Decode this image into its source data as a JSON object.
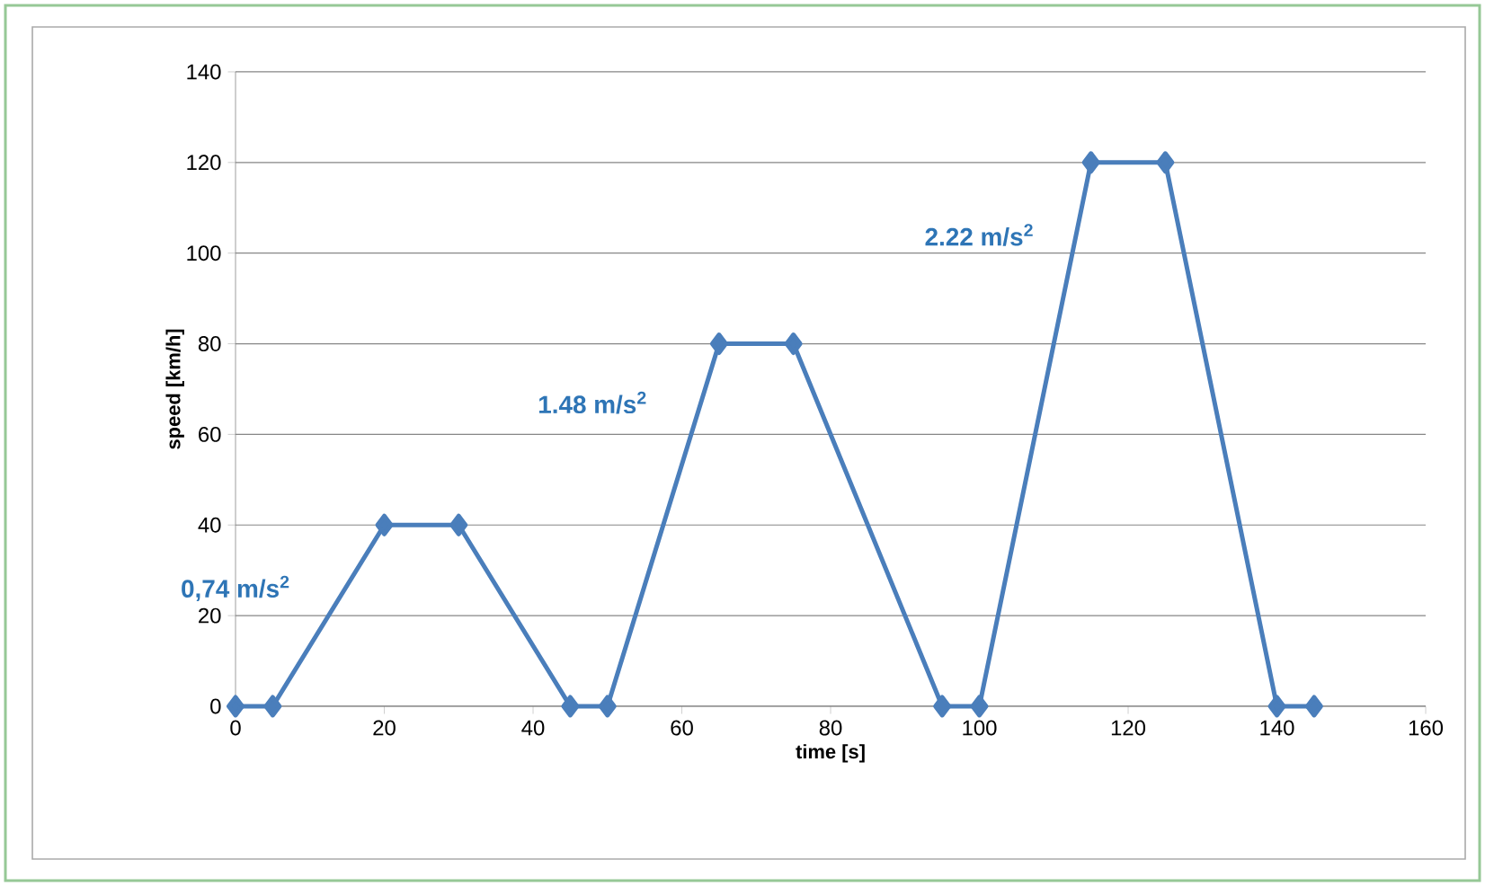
{
  "chart_data": {
    "type": "line",
    "xlabel": "time [s]",
    "ylabel": "speed [km/h]",
    "x": [
      0,
      5,
      20,
      30,
      45,
      50,
      65,
      75,
      95,
      100,
      115,
      125,
      140,
      145
    ],
    "series": [
      {
        "color": "#4a7ebb",
        "values": [
          0,
          0,
          40,
          40,
          0,
          0,
          80,
          80,
          0,
          0,
          120,
          120,
          0,
          0
        ]
      }
    ],
    "xlim": [
      0,
      160
    ],
    "ylim": [
      0,
      140
    ],
    "xticks": [
      0,
      20,
      40,
      60,
      80,
      100,
      120,
      140,
      160
    ],
    "yticks": [
      0,
      20,
      40,
      60,
      80,
      100,
      120,
      140
    ],
    "grid": "y",
    "marker": "diamond",
    "line_style": "solid",
    "annotations": [
      "0,74 m/s$^{2}$",
      "1.48 m/s$^{2}$",
      "2.22 m/s$^{2}$"
    ]
  }
}
